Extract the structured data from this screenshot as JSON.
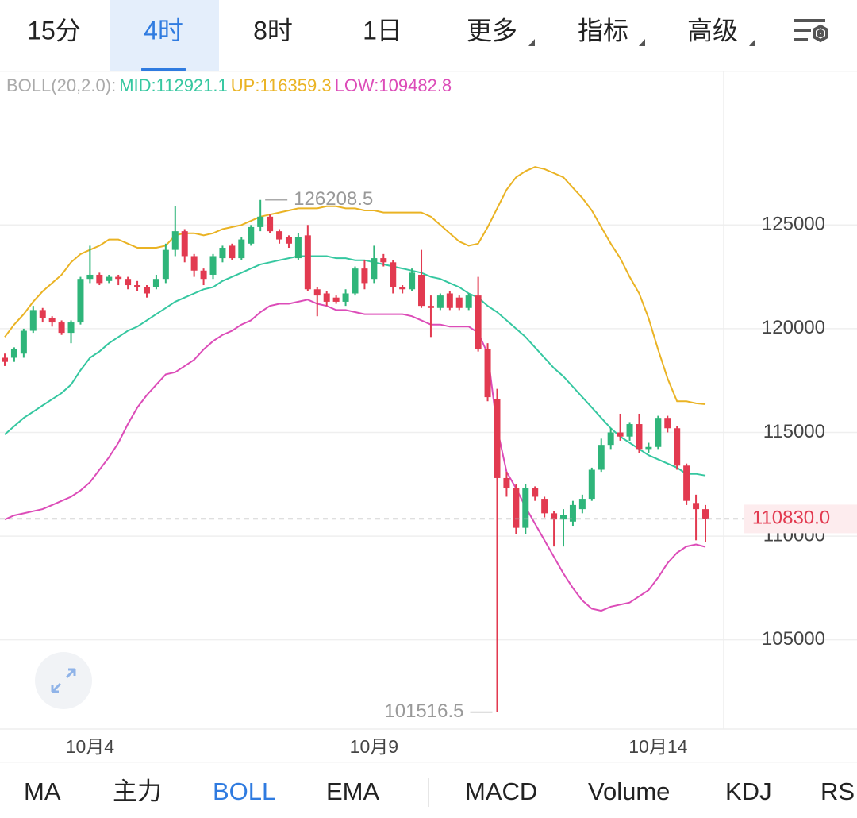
{
  "top_tabs": [
    "15分",
    "4时",
    "8时",
    "1日",
    "更多",
    "指标",
    "高级"
  ],
  "indicator_tabs": [
    "MA",
    "主力",
    "BOLL",
    "EMA",
    "MACD",
    "Volume",
    "KDJ",
    "RSI"
  ],
  "chart_data": {
    "type": "candlestick",
    "indicator_label": "BOLL(20,2.0):",
    "categories": [
      null,
      null,
      null,
      null,
      null,
      null,
      null,
      null,
      null,
      "10月4",
      null,
      null,
      null,
      null,
      null,
      null,
      null,
      null,
      null,
      null,
      null,
      null,
      null,
      null,
      null,
      null,
      null,
      null,
      null,
      null,
      null,
      null,
      null,
      null,
      null,
      null,
      null,
      null,
      null,
      "10月9",
      null,
      null,
      null,
      null,
      null,
      null,
      null,
      null,
      null,
      null,
      null,
      null,
      null,
      null,
      null,
      null,
      null,
      null,
      null,
      null,
      null,
      null,
      null,
      null,
      null,
      null,
      null,
      null,
      null,
      "10月14",
      null,
      null,
      null,
      null,
      null
    ],
    "open": [
      118600,
      118600,
      118800,
      119900,
      120900,
      120500,
      120300,
      119800,
      120300,
      122400,
      122600,
      122300,
      122500,
      122400,
      122100,
      122000,
      122000,
      122400,
      123800,
      124700,
      123500,
      122800,
      122600,
      123400,
      124000,
      123400,
      124100,
      124900,
      125400,
      124700,
      124400,
      123400,
      124500,
      121900,
      121700,
      121500,
      121300,
      121700,
      122900,
      122400,
      123400,
      123200,
      122000,
      121900,
      122600,
      121100,
      121000,
      121700,
      121500,
      121000,
      121600,
      119000,
      116600,
      112800,
      112300,
      110400,
      112300,
      111800,
      111100,
      110800,
      110700,
      111300,
      111800,
      113200,
      114400,
      115000,
      114800,
      115400,
      114200,
      114300,
      115700,
      115200,
      113400,
      111600,
      111300
    ],
    "high": [
      118800,
      119100,
      120000,
      121100,
      121000,
      120600,
      120400,
      120400,
      122500,
      124000,
      122700,
      122600,
      122600,
      122500,
      122300,
      122100,
      122600,
      124100,
      125900,
      124800,
      123600,
      122900,
      123600,
      124000,
      124100,
      124400,
      125000,
      126208.5,
      125500,
      124800,
      124500,
      124600,
      125000,
      122000,
      121800,
      121600,
      121900,
      123000,
      123300,
      124000,
      123600,
      123300,
      122100,
      122900,
      123800,
      121600,
      121700,
      121800,
      121600,
      121700,
      122500,
      119300,
      117100,
      113100,
      112500,
      112500,
      112400,
      111900,
      111200,
      111300,
      111700,
      112000,
      113300,
      114700,
      115200,
      115900,
      115500,
      115900,
      114500,
      115800,
      115800,
      115300,
      113500,
      112000,
      111500
    ],
    "low": [
      118200,
      118400,
      118600,
      119800,
      120300,
      120100,
      119700,
      119300,
      120200,
      122200,
      122100,
      122200,
      122100,
      121900,
      121800,
      121500,
      121900,
      122200,
      123500,
      123200,
      122500,
      122100,
      122400,
      123200,
      123300,
      123300,
      124000,
      124700,
      124600,
      124100,
      123900,
      123300,
      121800,
      120600,
      121100,
      121200,
      121100,
      121600,
      121900,
      122200,
      123000,
      121700,
      121700,
      121800,
      121000,
      119600,
      120900,
      120900,
      120900,
      120900,
      118900,
      116500,
      101516.5,
      111900,
      110100,
      110100,
      111700,
      110900,
      109500,
      109500,
      110500,
      111100,
      111700,
      113100,
      114200,
      114600,
      114600,
      114000,
      114000,
      114200,
      115000,
      113200,
      111500,
      109800,
      109700
    ],
    "close": [
      118400,
      119000,
      119900,
      120900,
      120500,
      120300,
      119800,
      120300,
      122400,
      122600,
      122200,
      122500,
      122400,
      122100,
      122000,
      121700,
      122400,
      123800,
      124700,
      123500,
      122800,
      122400,
      123500,
      123900,
      123400,
      124300,
      124900,
      125400,
      124700,
      124300,
      124100,
      124400,
      121900,
      121600,
      121300,
      121300,
      121700,
      122900,
      122200,
      123400,
      123200,
      122000,
      121900,
      122700,
      121100,
      121000,
      121600,
      121000,
      121000,
      121600,
      119000,
      116700,
      112800,
      112300,
      110400,
      112300,
      111900,
      111100,
      110800,
      111000,
      111500,
      111800,
      113200,
      114400,
      115000,
      114800,
      115400,
      114200,
      114300,
      115700,
      115200,
      113400,
      111700,
      111300,
      110830
    ],
    "up_color": "#2fb57a",
    "down_color": "#e23a50",
    "series": [
      {
        "label": "MID:112921.1",
        "color": "#35c7a0",
        "values": [
          114900,
          115300,
          115700,
          116000,
          116300,
          116600,
          116900,
          117300,
          118000,
          118600,
          118900,
          119300,
          119600,
          119900,
          120100,
          120400,
          120700,
          121000,
          121300,
          121500,
          121700,
          121900,
          122000,
          122300,
          122500,
          122700,
          122900,
          123100,
          123200,
          123300,
          123400,
          123500,
          123500,
          123500,
          123500,
          123400,
          123400,
          123300,
          123300,
          123200,
          123100,
          123000,
          122900,
          122800,
          122700,
          122500,
          122400,
          122200,
          122000,
          121700,
          121500,
          121100,
          120800,
          120400,
          120000,
          119600,
          119100,
          118600,
          118100,
          117700,
          117200,
          116700,
          116200,
          115700,
          115200,
          114800,
          114500,
          114200,
          113900,
          113700,
          113500,
          113300,
          113000,
          113000,
          112921.1
        ]
      },
      {
        "label": "UP:116359.3",
        "color": "#eab324",
        "values": [
          119600,
          120200,
          120700,
          121300,
          121800,
          122200,
          122600,
          123200,
          123600,
          123800,
          124000,
          124300,
          124300,
          124100,
          123900,
          123900,
          123900,
          124000,
          124500,
          124600,
          124600,
          124500,
          124600,
          124800,
          124900,
          125000,
          125200,
          125400,
          125500,
          125600,
          125700,
          125800,
          125800,
          125800,
          125900,
          125900,
          125800,
          125800,
          125700,
          125700,
          125600,
          125600,
          125600,
          125600,
          125600,
          125400,
          125000,
          124600,
          124200,
          124000,
          124100,
          124900,
          125800,
          126700,
          127300,
          127600,
          127800,
          127700,
          127500,
          127300,
          126800,
          126300,
          125700,
          124900,
          124100,
          123400,
          122500,
          121700,
          120500,
          119000,
          117600,
          116500,
          116500,
          116400,
          116359.3
        ]
      },
      {
        "label": "LOW:109482.8",
        "color": "#dc4cb8",
        "values": [
          110800,
          111000,
          111100,
          111200,
          111300,
          111500,
          111700,
          111900,
          112200,
          112600,
          113200,
          113800,
          114500,
          115400,
          116200,
          116800,
          117300,
          117800,
          117900,
          118200,
          118500,
          119000,
          119400,
          119700,
          119900,
          120200,
          120400,
          120800,
          121100,
          121200,
          121200,
          121300,
          121400,
          121200,
          121100,
          120900,
          120900,
          120800,
          120700,
          120700,
          120700,
          120700,
          120700,
          120600,
          120400,
          120200,
          120200,
          120100,
          120100,
          120100,
          119800,
          118800,
          115200,
          113100,
          112300,
          111400,
          110600,
          109800,
          109000,
          108200,
          107500,
          106900,
          106500,
          106400,
          106600,
          106700,
          106800,
          107100,
          107400,
          108000,
          108700,
          109200,
          109500,
          109600,
          109482.8
        ]
      }
    ],
    "annotations": [
      126208.5,
      101516.5
    ],
    "current_price": {
      "value": 110830,
      "label": "110830.0"
    },
    "ylim": [
      100700,
      132400
    ],
    "yticks": [
      105000,
      110000,
      115000,
      120000,
      125000
    ],
    "grid": true
  }
}
